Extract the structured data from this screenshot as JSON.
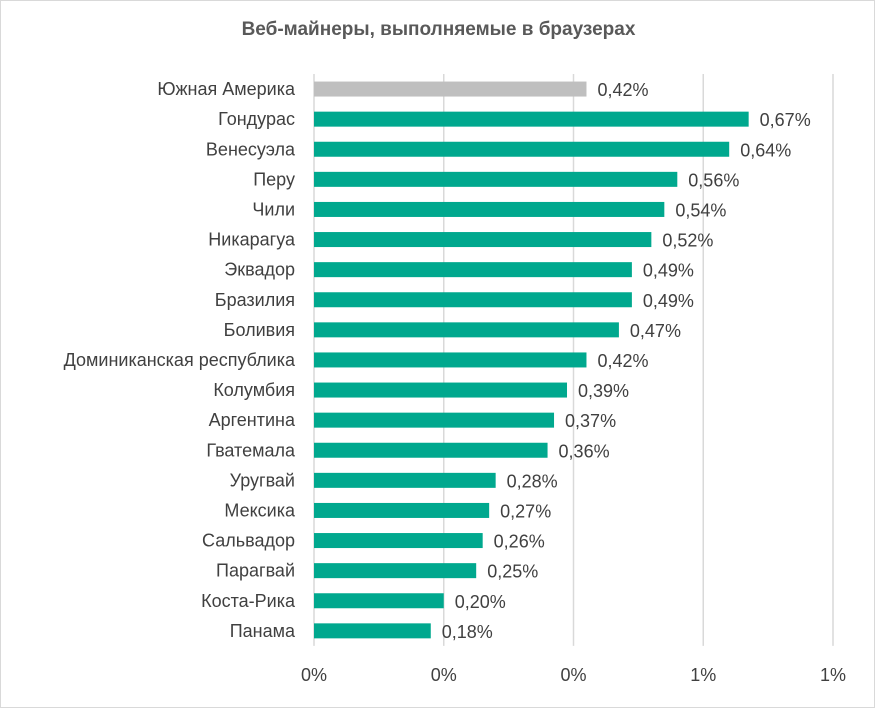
{
  "chart_data": {
    "type": "bar",
    "orientation": "horizontal",
    "title": "Веб-майнеры, выполняемые в браузерах",
    "xlabel": "",
    "ylabel": "",
    "xlim": [
      0,
      0.8
    ],
    "grid": true,
    "x_tick_labels": [
      "0%",
      "0%",
      "0%",
      "1%",
      "1%"
    ],
    "x_tick_values": [
      0,
      0.2,
      0.4,
      0.6,
      0.8
    ],
    "categories": [
      "Южная Америка",
      "Гондурас",
      "Венесуэла",
      "Перу",
      "Чили",
      "Никарагуа",
      "Эквадор",
      "Бразилия",
      "Боливия",
      "Доминиканская республика",
      "Колумбия",
      "Аргентина",
      "Гватемала",
      "Уругвай",
      "Мексика",
      "Сальвадор",
      "Парагвай",
      "Коста-Рика",
      "Панама"
    ],
    "values": [
      0.42,
      0.67,
      0.64,
      0.56,
      0.54,
      0.52,
      0.49,
      0.49,
      0.47,
      0.42,
      0.39,
      0.37,
      0.36,
      0.28,
      0.27,
      0.26,
      0.25,
      0.2,
      0.18
    ],
    "data_labels": [
      "0,42%",
      "0,67%",
      "0,64%",
      "0,56%",
      "0,54%",
      "0,52%",
      "0,49%",
      "0,49%",
      "0,47%",
      "0,42%",
      "0,39%",
      "0,37%",
      "0,36%",
      "0,28%",
      "0,27%",
      "0,26%",
      "0,25%",
      "0,20%",
      "0,18%"
    ],
    "colors": {
      "highlight": "#bfbfbf",
      "default": "#00a88e",
      "grid": "#d9d9d9"
    },
    "highlight_index": 0
  }
}
